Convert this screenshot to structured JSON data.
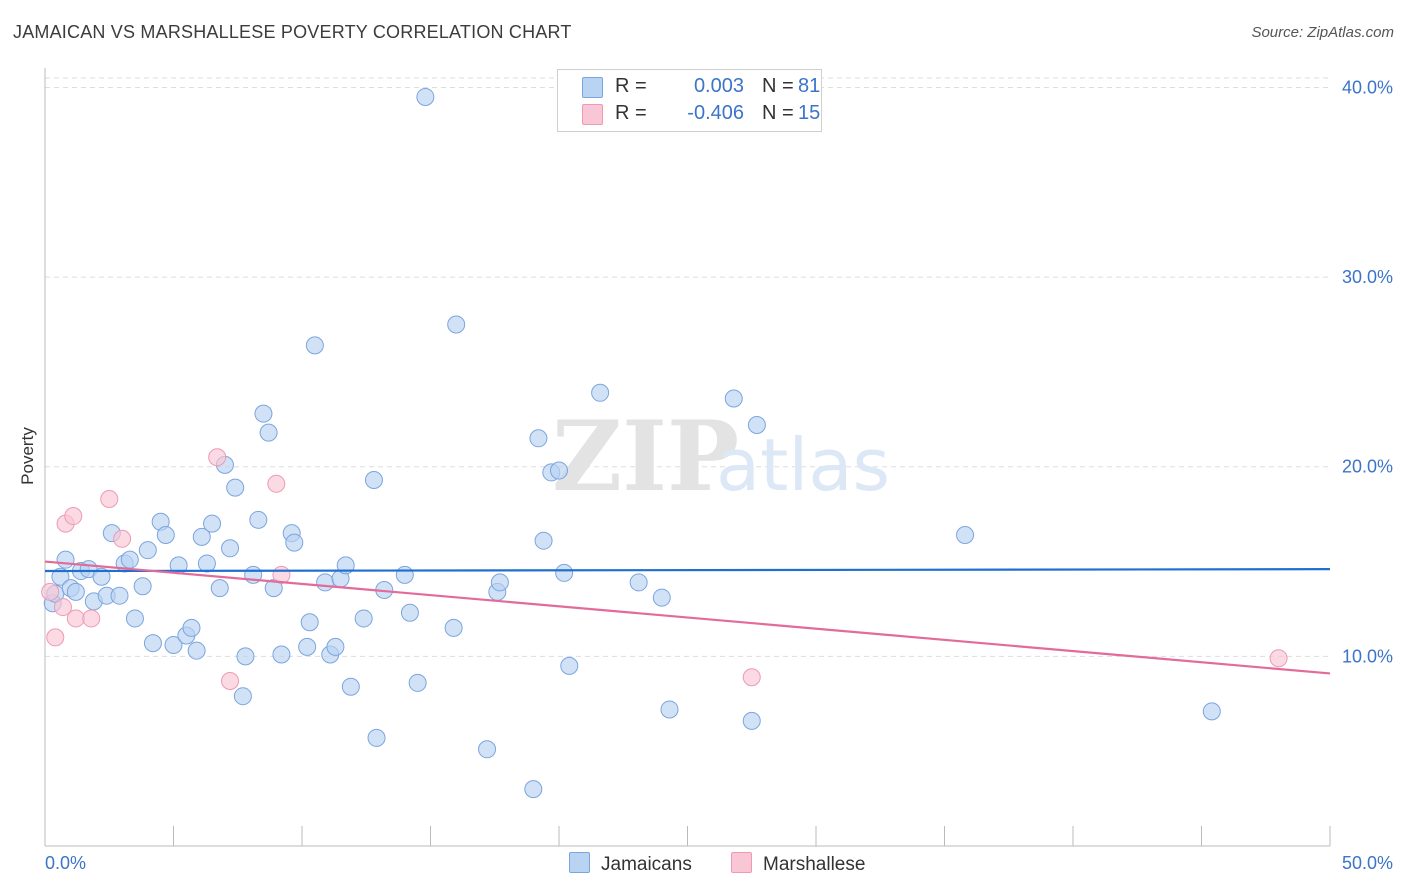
{
  "title": "JAMAICAN VS MARSHALLESE POVERTY CORRELATION CHART",
  "source": "Source: ZipAtlas.com",
  "watermark": {
    "zip": "ZIP",
    "atlas": "atlas"
  },
  "legend": [
    {
      "r_label": "R =",
      "r_value": "0.003",
      "n_label": "N =",
      "n_value": "81"
    },
    {
      "r_label": "R =",
      "r_value": "-0.406",
      "n_label": "N =",
      "n_value": "15"
    }
  ],
  "colors": {
    "jamaican_fill": "#b9d3f3",
    "jamaican_stroke": "#7ba5de",
    "jamaican_line": "#1f6fd1",
    "marshallese_fill": "#f9c6d6",
    "marshallese_stroke": "#ec9ab5",
    "marshallese_line": "#e26b99",
    "axis_label": "#3b74c9",
    "grid": "#dddddd"
  },
  "chart_data": {
    "type": "scatter",
    "title": "JAMAICAN VS MARSHALLESE POVERTY CORRELATION CHART",
    "ylabel": "Poverty",
    "xlabel": "",
    "xlim": [
      0,
      50
    ],
    "ylim": [
      0,
      40.5
    ],
    "x_tick_labels": [
      "0.0%",
      "50.0%"
    ],
    "y_ticks": [
      10,
      20,
      30,
      40
    ],
    "y_tick_labels": [
      "10.0%",
      "20.0%",
      "30.0%",
      "40.0%"
    ],
    "grid": true,
    "legend_position": "top-center",
    "series": [
      {
        "name": "Jamaicans",
        "r": 0.003,
        "n": 81,
        "trend": [
          [
            0,
            14.5
          ],
          [
            50,
            14.6
          ]
        ],
        "points": [
          [
            0.3,
            12.8
          ],
          [
            0.4,
            13.3
          ],
          [
            0.6,
            14.2
          ],
          [
            0.8,
            15.1
          ],
          [
            1.0,
            13.6
          ],
          [
            1.2,
            13.4
          ],
          [
            1.4,
            14.5
          ],
          [
            1.7,
            14.6
          ],
          [
            1.9,
            12.9
          ],
          [
            2.2,
            14.2
          ],
          [
            2.4,
            13.2
          ],
          [
            2.6,
            16.5
          ],
          [
            2.9,
            13.2
          ],
          [
            3.1,
            14.9
          ],
          [
            3.3,
            15.1
          ],
          [
            3.5,
            12.0
          ],
          [
            3.8,
            13.7
          ],
          [
            4.0,
            15.6
          ],
          [
            4.2,
            10.7
          ],
          [
            4.5,
            17.1
          ],
          [
            4.7,
            16.4
          ],
          [
            5.0,
            10.6
          ],
          [
            5.2,
            14.8
          ],
          [
            5.5,
            11.1
          ],
          [
            5.7,
            11.5
          ],
          [
            5.9,
            10.3
          ],
          [
            6.1,
            16.3
          ],
          [
            6.3,
            14.9
          ],
          [
            6.5,
            17.0
          ],
          [
            6.8,
            13.6
          ],
          [
            7.0,
            20.1
          ],
          [
            7.2,
            15.7
          ],
          [
            7.4,
            18.9
          ],
          [
            7.7,
            7.9
          ],
          [
            7.8,
            10.0
          ],
          [
            8.1,
            14.3
          ],
          [
            8.3,
            17.2
          ],
          [
            8.5,
            22.8
          ],
          [
            8.7,
            21.8
          ],
          [
            8.9,
            13.6
          ],
          [
            9.2,
            10.1
          ],
          [
            9.6,
            16.5
          ],
          [
            9.7,
            16.0
          ],
          [
            10.2,
            10.5
          ],
          [
            10.3,
            11.8
          ],
          [
            10.5,
            26.4
          ],
          [
            10.9,
            13.9
          ],
          [
            11.1,
            10.1
          ],
          [
            11.3,
            10.5
          ],
          [
            11.5,
            14.1
          ],
          [
            11.7,
            14.8
          ],
          [
            11.9,
            8.4
          ],
          [
            12.4,
            12.0
          ],
          [
            12.8,
            19.3
          ],
          [
            12.9,
            5.7
          ],
          [
            13.2,
            13.5
          ],
          [
            14.0,
            14.3
          ],
          [
            14.2,
            12.3
          ],
          [
            14.5,
            8.6
          ],
          [
            14.8,
            39.5
          ],
          [
            15.9,
            11.5
          ],
          [
            16.0,
            27.5
          ],
          [
            17.2,
            5.1
          ],
          [
            17.6,
            13.4
          ],
          [
            17.7,
            13.9
          ],
          [
            19.0,
            3.0
          ],
          [
            19.2,
            21.5
          ],
          [
            19.4,
            16.1
          ],
          [
            19.7,
            19.7
          ],
          [
            20.0,
            19.8
          ],
          [
            20.2,
            14.4
          ],
          [
            20.4,
            9.5
          ],
          [
            21.6,
            23.9
          ],
          [
            23.1,
            13.9
          ],
          [
            24.0,
            13.1
          ],
          [
            24.3,
            7.2
          ],
          [
            26.8,
            23.6
          ],
          [
            27.5,
            6.6
          ],
          [
            27.7,
            22.2
          ],
          [
            35.8,
            16.4
          ],
          [
            45.4,
            7.1
          ]
        ]
      },
      {
        "name": "Marshallese",
        "r": -0.406,
        "n": 15,
        "trend": [
          [
            0,
            15.0
          ],
          [
            50,
            9.1
          ]
        ],
        "points": [
          [
            0.2,
            13.4
          ],
          [
            0.4,
            11.0
          ],
          [
            0.7,
            12.6
          ],
          [
            0.8,
            17.0
          ],
          [
            1.1,
            17.4
          ],
          [
            1.2,
            12.0
          ],
          [
            1.8,
            12.0
          ],
          [
            2.5,
            18.3
          ],
          [
            3.0,
            16.2
          ],
          [
            6.7,
            20.5
          ],
          [
            7.2,
            8.7
          ],
          [
            9.0,
            19.1
          ],
          [
            9.2,
            14.3
          ],
          [
            27.5,
            8.9
          ],
          [
            48.0,
            9.9
          ]
        ]
      }
    ]
  }
}
